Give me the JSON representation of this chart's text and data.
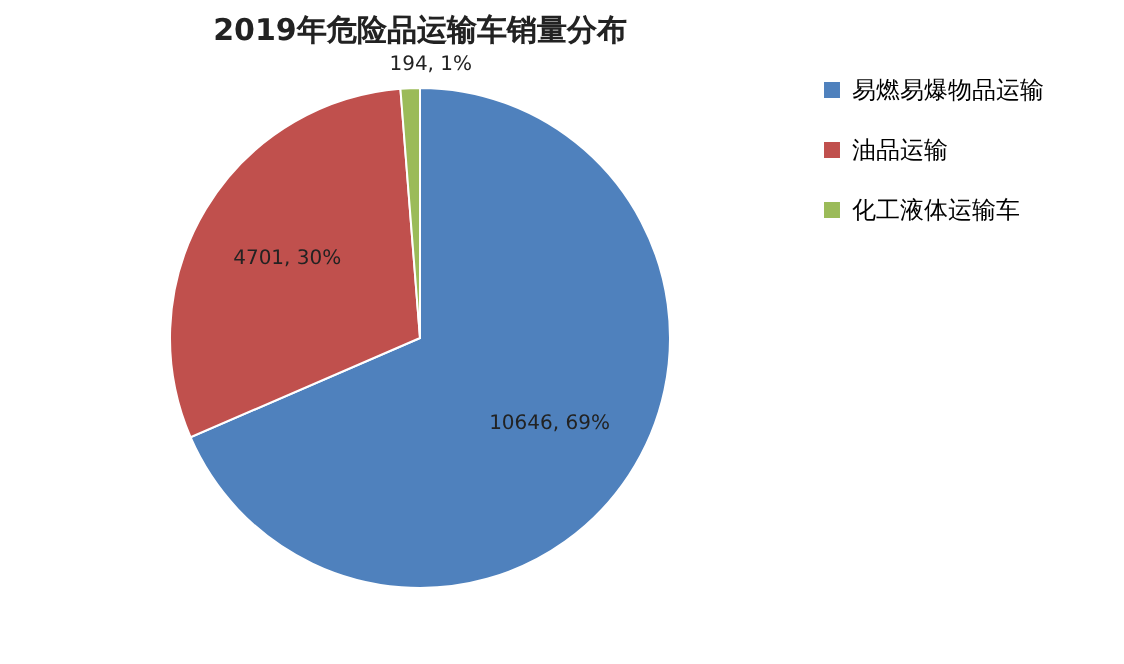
{
  "chart_data": {
    "type": "pie",
    "title": "2019年危险品运输车销量分布",
    "categories": [
      "易燃易爆物品运输",
      "油品运输",
      "化工液体运输车"
    ],
    "values": [
      10646,
      4701,
      194
    ],
    "colors": [
      "#4f81bd",
      "#c0504d",
      "#9bbb59"
    ],
    "value_labels": [
      "10646, 69%",
      "4701, 30%",
      "194, 1%"
    ],
    "legend": "right"
  }
}
